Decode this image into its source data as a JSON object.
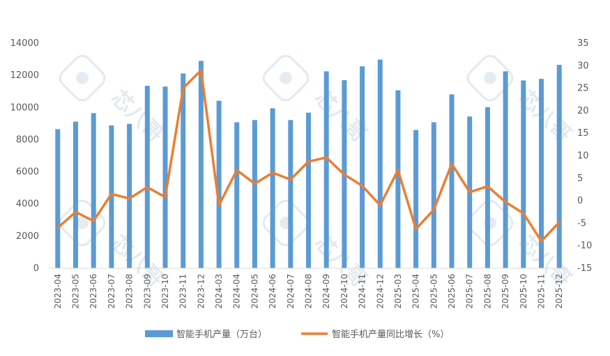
{
  "chart_data": {
    "type": "bar+line",
    "categories": [
      "2023-04",
      "2023-05",
      "2023-06",
      "2023-07",
      "2023-08",
      "2023-09",
      "2023-10",
      "2023-11",
      "2023-12",
      "2024-03",
      "2024-04",
      "2024-05",
      "2024-06",
      "2024-07",
      "2024-08",
      "2024-09",
      "2024-10",
      "2024-11",
      "2024-12",
      "2025-03",
      "2025-04",
      "2025-05",
      "2025-06",
      "2025-07",
      "2025-08",
      "2025-09",
      "2025-10",
      "2025-11",
      "2025-12"
    ],
    "series": [
      {
        "name": "智能手机产量（万台）",
        "type": "bar",
        "axis": "left",
        "color": "#5b9bd5",
        "values": [
          8650,
          9120,
          9650,
          8880,
          8980,
          11350,
          11300,
          12120,
          12900,
          10420,
          9080,
          9220,
          9950,
          9220,
          9680,
          12250,
          11700,
          12560,
          12980,
          11070,
          8600,
          9080,
          10820,
          9440,
          10020,
          12250,
          11680,
          11780,
          12650
        ]
      },
      {
        "name": "智能手机产量同比增长（%）",
        "type": "line",
        "axis": "right",
        "color": "#ed7d31",
        "values": [
          -6,
          -2.5,
          -4.5,
          1.5,
          0.5,
          3,
          0.8,
          25,
          29,
          -1,
          6.8,
          3.8,
          6.2,
          4.7,
          8.7,
          9.6,
          5.8,
          3.3,
          -1,
          6.8,
          -6.3,
          -2,
          8.2,
          1.9,
          3.2,
          -0.3,
          -2.8,
          -9,
          -4.8
        ]
      }
    ],
    "y_left": {
      "min": 0,
      "max": 14000,
      "step": 2000,
      "ticks": [
        "0",
        "2000",
        "4000",
        "6000",
        "8000",
        "10000",
        "12000",
        "14000"
      ]
    },
    "y_right": {
      "min": -15,
      "max": 35,
      "step": 5,
      "ticks": [
        "-15",
        "-10",
        "-5",
        "0",
        "5",
        "10",
        "15",
        "20",
        "25",
        "30",
        "35"
      ]
    },
    "grid": false,
    "legend_position": "bottom",
    "legend": [
      "智能手机产量（万台）",
      "智能手机产量同比增长（%）"
    ],
    "watermark_text": "芯八哥"
  }
}
